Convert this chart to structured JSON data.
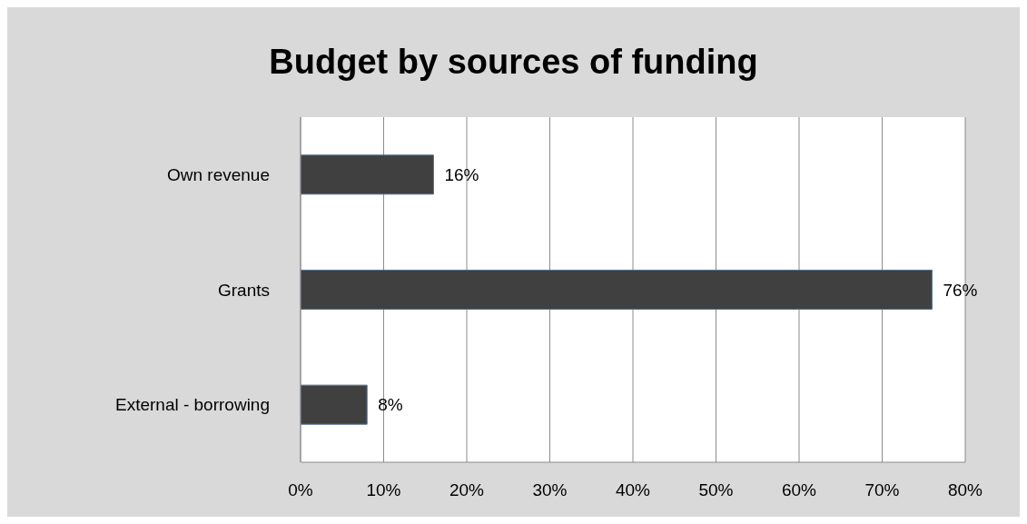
{
  "chart_data": {
    "type": "bar",
    "orientation": "horizontal",
    "title": "Budget by sources of funding",
    "categories": [
      "Own revenue",
      "Grants",
      "External - borrowing"
    ],
    "values": [
      16,
      76,
      8
    ],
    "value_labels": [
      "16%",
      "76%",
      "8%"
    ],
    "color": "#404040",
    "xlim": [
      0,
      80
    ],
    "xticks": [
      {
        "value": 0,
        "label": "0%"
      },
      {
        "value": 10,
        "label": "10%"
      },
      {
        "value": 20,
        "label": "20%"
      },
      {
        "value": 30,
        "label": "30%"
      },
      {
        "value": 40,
        "label": "40%"
      },
      {
        "value": 50,
        "label": "50%"
      },
      {
        "value": 60,
        "label": "60%"
      },
      {
        "value": 70,
        "label": "70%"
      },
      {
        "value": 80,
        "label": "80%"
      }
    ],
    "grid": "x",
    "legend": false
  }
}
